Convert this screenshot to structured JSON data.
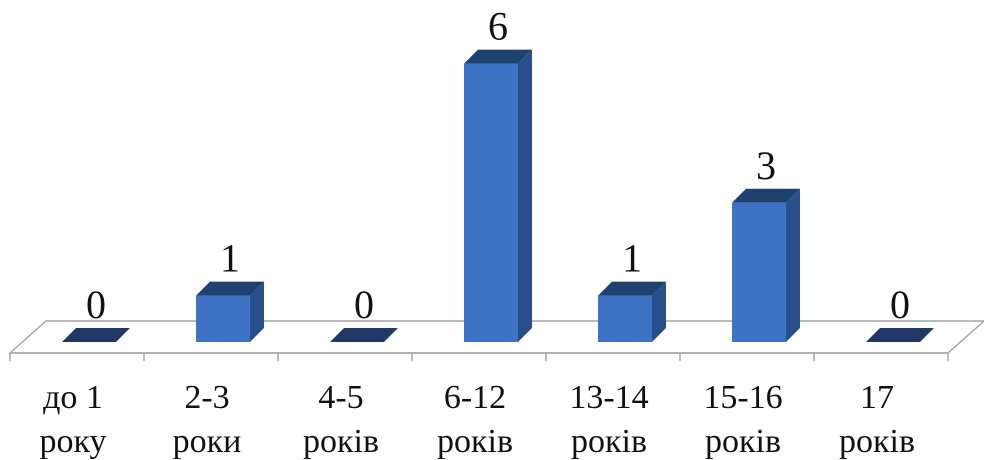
{
  "chart_data": {
    "type": "bar",
    "title": "",
    "xlabel": "",
    "ylabel": "",
    "categories": [
      [
        "до 1",
        "року"
      ],
      [
        "2-3",
        "роки"
      ],
      [
        "4-5",
        "років"
      ],
      [
        "6-12",
        "років"
      ],
      [
        "13-14",
        "років"
      ],
      [
        "15-16",
        "років"
      ],
      [
        "17",
        "років"
      ]
    ],
    "values": [
      0,
      1,
      0,
      6,
      1,
      3,
      0
    ],
    "data_labels": [
      "0",
      "1",
      "0",
      "6",
      "1",
      "3",
      "0"
    ],
    "ylim": [
      0,
      6
    ],
    "grid": false,
    "legend": "none",
    "style": "3d-column"
  },
  "colors": {
    "bar_front": "#3D72C4",
    "bar_side": "#274F8C",
    "bar_top": "#1F4170",
    "zero_marker": "#1F3864",
    "floor_fill": "#FFFFFF",
    "floor_stroke": "#A6A6A6",
    "text": "#111111"
  }
}
